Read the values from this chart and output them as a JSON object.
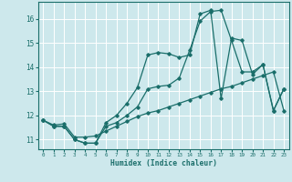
{
  "xlabel": "Humidex (Indice chaleur)",
  "xlim": [
    -0.5,
    23.5
  ],
  "ylim": [
    10.6,
    16.7
  ],
  "yticks": [
    11,
    12,
    13,
    14,
    15,
    16
  ],
  "xticks": [
    0,
    1,
    2,
    3,
    4,
    5,
    6,
    7,
    8,
    9,
    10,
    11,
    12,
    13,
    14,
    15,
    16,
    17,
    18,
    19,
    20,
    21,
    22,
    23
  ],
  "background_color": "#cde8ec",
  "grid_color": "#ffffff",
  "line_color": "#1a6e6a",
  "line1_x": [
    0,
    1,
    2,
    3,
    4,
    5,
    6,
    7,
    8,
    9,
    10,
    11,
    12,
    13,
    14,
    15,
    16,
    17,
    18,
    19,
    20,
    21,
    22,
    23
  ],
  "line1_y": [
    11.8,
    11.55,
    11.55,
    11.0,
    10.85,
    10.85,
    11.55,
    11.7,
    12.0,
    12.35,
    13.1,
    13.2,
    13.25,
    13.55,
    14.7,
    15.9,
    16.3,
    16.35,
    15.1,
    13.8,
    13.8,
    14.1,
    12.2,
    13.1
  ],
  "line2_x": [
    0,
    1,
    2,
    3,
    4,
    5,
    6,
    7,
    8,
    9,
    10,
    11,
    12,
    13,
    14,
    15,
    16,
    17,
    18,
    19,
    20,
    21,
    22,
    23
  ],
  "line2_y": [
    11.8,
    11.55,
    11.55,
    11.0,
    10.85,
    10.85,
    11.7,
    12.0,
    12.5,
    13.15,
    14.5,
    14.6,
    14.55,
    14.4,
    14.5,
    16.2,
    16.35,
    12.7,
    15.2,
    15.1,
    13.7,
    14.1,
    12.2,
    13.1
  ],
  "line3_x": [
    0,
    1,
    2,
    3,
    4,
    5,
    6,
    7,
    8,
    9,
    10,
    11,
    12,
    13,
    14,
    15,
    16,
    17,
    18,
    19,
    20,
    21,
    22,
    23
  ],
  "line3_y": [
    11.8,
    11.6,
    11.65,
    11.1,
    11.1,
    11.15,
    11.35,
    11.55,
    11.75,
    11.95,
    12.1,
    12.2,
    12.35,
    12.5,
    12.65,
    12.8,
    12.95,
    13.1,
    13.2,
    13.35,
    13.5,
    13.65,
    13.8,
    12.2
  ],
  "line_width": 0.9,
  "marker": "D",
  "marker_size": 1.8
}
